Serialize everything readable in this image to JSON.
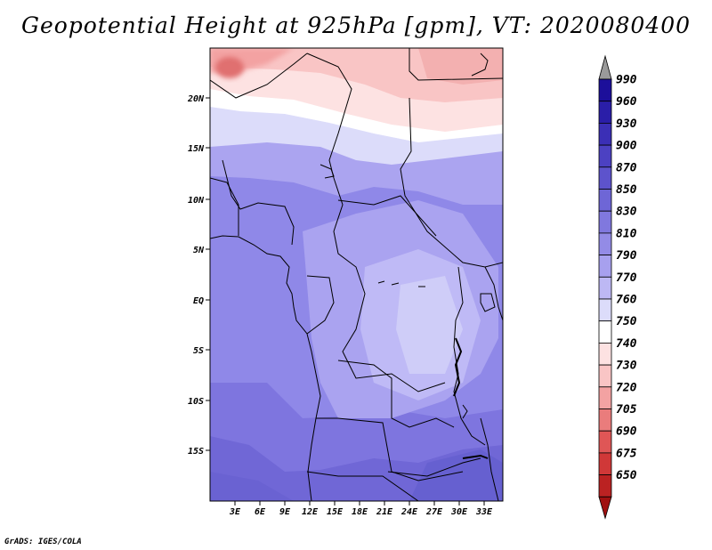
{
  "title": "Geopotential Height at 925hPa [gpm], VT: 2020080400",
  "credit": "GrADS: IGES/COLA",
  "map": {
    "lat_labels": [
      "20N",
      "15N",
      "10N",
      "5N",
      "EQ",
      "5S",
      "10S",
      "15S"
    ],
    "lon_labels": [
      "3E",
      "6E",
      "9E",
      "12E",
      "15E",
      "18E",
      "21E",
      "24E",
      "27E",
      "30E",
      "33E"
    ]
  },
  "colorbar": {
    "labels": [
      "990",
      "960",
      "930",
      "900",
      "870",
      "850",
      "830",
      "810",
      "790",
      "770",
      "760",
      "750",
      "740",
      "730",
      "720",
      "705",
      "690",
      "675",
      "650"
    ],
    "colors": [
      "#1c0f9a",
      "#2a1ea8",
      "#3b2fb6",
      "#4c41c2",
      "#5d53cc",
      "#6e66d6",
      "#8078de",
      "#938be6",
      "#a7a0ee",
      "#bdb8f4",
      "#dcdcfa",
      "#ffffff",
      "#fde2e2",
      "#f9c5c5",
      "#f3a2a2",
      "#ea7c7c",
      "#df5656",
      "#d03838",
      "#bb2222",
      "#a01010"
    ]
  }
}
